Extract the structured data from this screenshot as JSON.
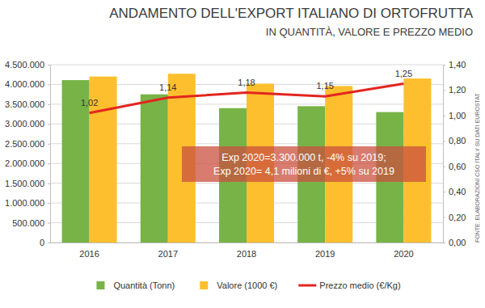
{
  "chart_data": {
    "type": "bar",
    "title": "ANDAMENTO DELL'EXPORT ITALIANO DI ORTOFRUTTA",
    "subtitle": "IN QUANTITÀ, VALORE E PREZZO MEDIO",
    "annotations": [
      "Exp 2020=3.300.000 t, -4% su 2019;",
      "Exp 2020= 4,1 milioni di €, +5% su 2019"
    ],
    "source": "FONTE: ELABORAZIONI CSO ITALY SU DATI EUROSTAT",
    "categories": [
      "2016",
      "2017",
      "2018",
      "2019",
      "2020"
    ],
    "series": [
      {
        "name": "Quantità (Tonn)",
        "type": "bar",
        "color": "#77b347",
        "values": [
          4110000,
          3750000,
          3400000,
          3450000,
          3300000
        ]
      },
      {
        "name": "Valore (1000 €)",
        "type": "bar",
        "color": "#fdbf2d",
        "values": [
          4200000,
          4270000,
          4020000,
          3960000,
          4150000
        ]
      },
      {
        "name": "Prezzo medio (€/Kg)",
        "type": "line",
        "axis": "y2",
        "color": "#e3251f",
        "data_labels": true,
        "values": [
          1.02,
          1.14,
          1.18,
          1.15,
          1.25
        ],
        "value_labels": [
          "1,02",
          "1,14",
          "1,18",
          "1,15",
          "1,25"
        ]
      }
    ],
    "ylim": [
      0,
      4500000
    ],
    "yticks": [
      0,
      {
        "value": 500000,
        "label": "500.000"
      },
      {
        "value": 1000000,
        "label": "1.000.000"
      },
      {
        "value": 1500000,
        "label": "1.500.000"
      },
      {
        "value": 2000000,
        "label": "2.000.000"
      },
      {
        "value": 2500000,
        "label": "2.500.000"
      },
      {
        "value": 3000000,
        "label": "3.000.000"
      },
      {
        "value": 3500000,
        "label": "3.500.000"
      },
      {
        "value": 4000000,
        "label": "4.000.000"
      },
      {
        "value": 4500000,
        "label": "4.500.000"
      }
    ],
    "y2lim": [
      0,
      1.4
    ],
    "y2ticks": [
      {
        "value": 0,
        "label": "0,00"
      },
      {
        "value": 0.2,
        "label": "0,20"
      },
      {
        "value": 0.4,
        "label": "0,40"
      },
      {
        "value": 0.6,
        "label": "0,60"
      },
      {
        "value": 0.8,
        "label": "0,80"
      },
      {
        "value": 1.0,
        "label": "1,00"
      },
      {
        "value": 1.2,
        "label": "1,20"
      },
      {
        "value": 1.4,
        "label": "1,40"
      }
    ],
    "grid": true,
    "legend": "bottom"
  }
}
